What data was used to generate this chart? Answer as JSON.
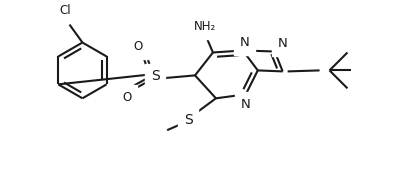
{
  "bg_color": "#ffffff",
  "line_color": "#1a1a1a",
  "line_width": 1.5,
  "font_size": 8.5,
  "figsize": [
    4.02,
    1.78
  ],
  "dpi": 100,
  "xlim": [
    0,
    402
  ],
  "ylim": [
    0,
    178
  ]
}
